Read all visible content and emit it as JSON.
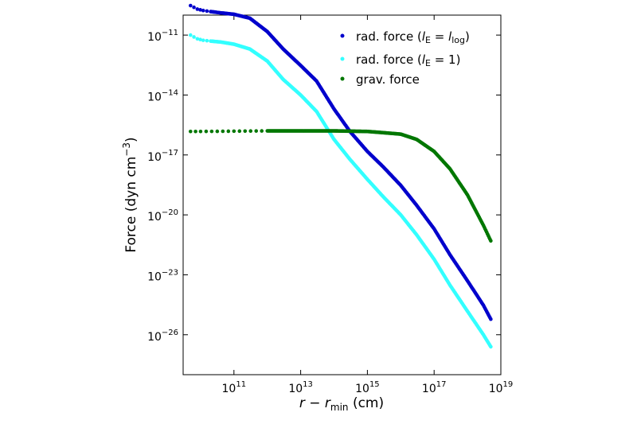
{
  "chart_data": {
    "type": "scatter",
    "x_scale": "log",
    "y_scale": "log",
    "xlim": [
      3000000000.0,
      1e+19
    ],
    "ylim": [
      1e-28,
      1e-10
    ],
    "xlabel": {
      "pre": "r − r",
      "sub": "min",
      "post": " (cm)"
    },
    "ylabel": {
      "pre": "Force (dyn cm",
      "sup": "−3",
      "post": ")"
    },
    "x_ticks": [
      {
        "value": 100000000000.0,
        "base": "10",
        "exp": "11"
      },
      {
        "value": 10000000000000.0,
        "base": "10",
        "exp": "13"
      },
      {
        "value": 1000000000000000.0,
        "base": "10",
        "exp": "15"
      },
      {
        "value": 1e+17,
        "base": "10",
        "exp": "17"
      },
      {
        "value": 1e+19,
        "base": "10",
        "exp": "19"
      }
    ],
    "y_ticks": [
      {
        "value": 1e-11,
        "base": "10",
        "exp": "−11"
      },
      {
        "value": 1e-14,
        "base": "10",
        "exp": "−14"
      },
      {
        "value": 1e-17,
        "base": "10",
        "exp": "−17"
      },
      {
        "value": 1e-20,
        "base": "10",
        "exp": "−20"
      },
      {
        "value": 1e-23,
        "base": "10",
        "exp": "−23"
      },
      {
        "value": 1e-26,
        "base": "10",
        "exp": "−26"
      }
    ],
    "legend_position": "top-right",
    "series": [
      {
        "name": "rad. force (lE = llog)",
        "legend_parts": {
          "pre": "rad.  force (",
          "var": "l",
          "sub1": "E",
          "mid": " = ",
          "var2": "l",
          "sub2": "log",
          "post": ")"
        },
        "color": "#0000cc",
        "points": [
          [
            5000000000.0,
            3e-10
          ],
          [
            8000000000.0,
            2e-10
          ],
          [
            12000000000.0,
            1.7e-10
          ],
          [
            20000000000.0,
            1.5e-10
          ],
          [
            40000000000.0,
            1.3e-10
          ],
          [
            100000000000.0,
            1.1e-10
          ],
          [
            300000000000.0,
            7e-11
          ],
          [
            1000000000000.0,
            1.5e-11
          ],
          [
            3000000000000.0,
            2e-12
          ],
          [
            10000000000000.0,
            3e-13
          ],
          [
            30000000000000.0,
            5e-14
          ],
          [
            100000000000000.0,
            2e-15
          ],
          [
            300000000000000.0,
            1.5e-16
          ],
          [
            1000000000000000.0,
            1.5e-17
          ],
          [
            3000000000000000.0,
            2.5e-18
          ],
          [
            1e+16,
            3e-19
          ],
          [
            3e+16,
            3e-20
          ],
          [
            1e+17,
            2e-21
          ],
          [
            3e+17,
            1e-22
          ],
          [
            1e+18,
            5e-24
          ],
          [
            3e+18,
            3e-25
          ],
          [
            5e+18,
            6e-26
          ]
        ]
      },
      {
        "name": "rad. force (lE = 1)",
        "legend_parts": {
          "pre": "rad.  force (",
          "var": "l",
          "sub1": "E",
          "mid": " = 1)",
          "var2": "",
          "sub2": "",
          "post": ""
        },
        "color": "#33ffff",
        "points": [
          [
            5000000000.0,
            1e-11
          ],
          [
            8000000000.0,
            6.5e-12
          ],
          [
            12000000000.0,
            5.5e-12
          ],
          [
            20000000000.0,
            5e-12
          ],
          [
            40000000000.0,
            4.5e-12
          ],
          [
            100000000000.0,
            3.5e-12
          ],
          [
            300000000000.0,
            2e-12
          ],
          [
            1000000000000.0,
            5e-13
          ],
          [
            3000000000000.0,
            6e-14
          ],
          [
            10000000000000.0,
            1e-14
          ],
          [
            30000000000000.0,
            1.5e-15
          ],
          [
            100000000000000.0,
            6e-17
          ],
          [
            300000000000000.0,
            6e-18
          ],
          [
            1000000000000000.0,
            6e-19
          ],
          [
            3000000000000000.0,
            8e-20
          ],
          [
            1e+16,
            1e-20
          ],
          [
            3e+16,
            1e-21
          ],
          [
            1e+17,
            6e-23
          ],
          [
            3e+17,
            3e-24
          ],
          [
            1e+18,
            1.5e-25
          ],
          [
            3e+18,
            1e-26
          ],
          [
            5e+18,
            2.5e-27
          ]
        ]
      },
      {
        "name": "grav. force",
        "legend_parts": {
          "pre": "grav. force",
          "var": "",
          "sub1": "",
          "mid": "",
          "var2": "",
          "sub2": "",
          "post": ""
        },
        "color": "#007700",
        "points": [
          [
            5000000000.0,
            1.5e-16
          ],
          [
            10000000000.0,
            1.5e-16
          ],
          [
            100000000000.0,
            1.55e-16
          ],
          [
            1000000000000.0,
            1.6e-16
          ],
          [
            10000000000000.0,
            1.6e-16
          ],
          [
            100000000000000.0,
            1.6e-16
          ],
          [
            1000000000000000.0,
            1.5e-16
          ],
          [
            3000000000000000.0,
            1.3e-16
          ],
          [
            1e+16,
            1.1e-16
          ],
          [
            3e+16,
            6e-17
          ],
          [
            1e+17,
            1.5e-17
          ],
          [
            3e+17,
            2e-18
          ],
          [
            1e+18,
            1e-19
          ],
          [
            3e+18,
            3e-21
          ],
          [
            5e+18,
            5e-22
          ]
        ]
      }
    ]
  }
}
